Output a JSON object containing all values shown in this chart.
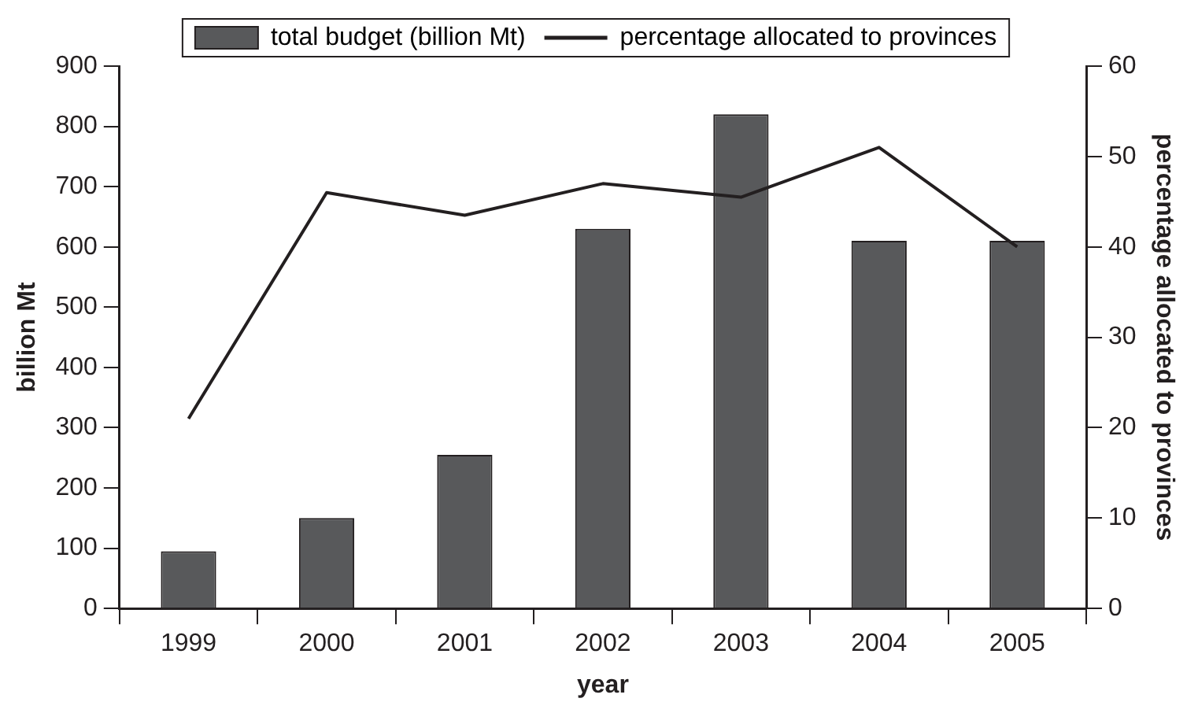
{
  "chart_data": {
    "type": "bar",
    "categories": [
      "1999",
      "2000",
      "2001",
      "2002",
      "2003",
      "2004",
      "2005"
    ],
    "series": [
      {
        "name": "total budget (billion Mt)",
        "color": "#58595b",
        "values": [
          95,
          150,
          255,
          630,
          820,
          610,
          610
        ]
      },
      {
        "name": "percentage allocated to provinces",
        "type": "line",
        "axis": "y2",
        "color": "#231f20",
        "values": [
          21,
          46,
          43.5,
          47,
          45.5,
          51,
          40
        ]
      }
    ],
    "xlabel": "year",
    "ylabel": "billion Mt",
    "y2label": "percentage allocated to provinces",
    "ylim": [
      0,
      900
    ],
    "yticks": [
      0,
      100,
      200,
      300,
      400,
      500,
      600,
      700,
      800,
      900
    ],
    "y2lim": [
      0,
      60
    ],
    "y2ticks": [
      0,
      10,
      20,
      30,
      40,
      50,
      60
    ],
    "grid": false,
    "legend": "top",
    "marker": "none"
  }
}
